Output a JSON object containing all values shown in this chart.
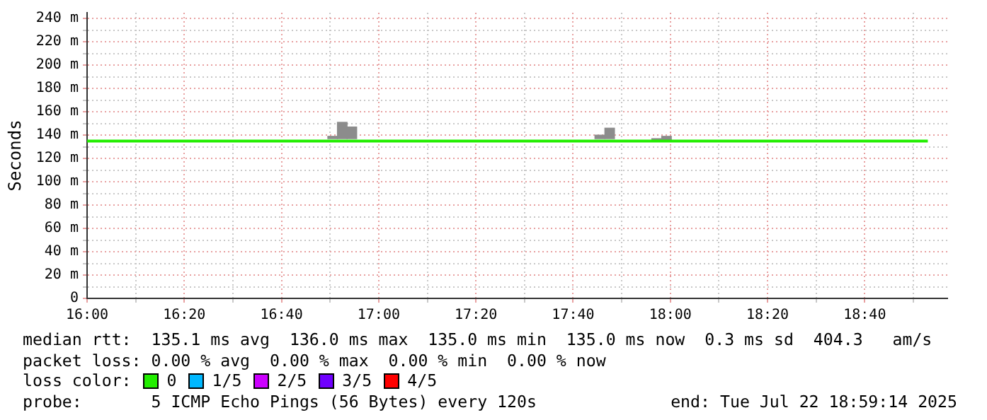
{
  "chart_data": {
    "type": "step",
    "ylabel": "Seconds",
    "legend_title": "loss color:",
    "legend": "bottom",
    "grid": true,
    "line_style": "solid",
    "marker": "none",
    "xlim": [
      16,
      18.95
    ],
    "xticks": [
      {
        "value": 16,
        "label": "16:00"
      },
      {
        "value": 16.1667,
        "label": null
      },
      {
        "value": 16.3333,
        "label": "16:20"
      },
      {
        "value": 16.5,
        "label": null
      },
      {
        "value": 16.6667,
        "label": "16:40"
      },
      {
        "value": 16.8333,
        "label": null
      },
      {
        "value": 17,
        "label": "17:00"
      },
      {
        "value": 17.1667,
        "label": null
      },
      {
        "value": 17.3333,
        "label": "17:20"
      },
      {
        "value": 17.5,
        "label": null
      },
      {
        "value": 17.6667,
        "label": "17:40"
      },
      {
        "value": 17.8333,
        "label": null
      },
      {
        "value": 18,
        "label": "18:00"
      },
      {
        "value": 18.1667,
        "label": null
      },
      {
        "value": 18.3333,
        "label": "18:20"
      },
      {
        "value": 18.5,
        "label": null
      },
      {
        "value": 18.6667,
        "label": "18:40"
      },
      {
        "value": 18.8333,
        "label": null
      }
    ],
    "ylim": [
      0,
      245
    ],
    "yticks": [
      0,
      {
        "value": 10,
        "label": null
      },
      {
        "value": 20,
        "label": "20 m"
      },
      {
        "value": 30,
        "label": null
      },
      {
        "value": 40,
        "label": "40 m"
      },
      {
        "value": 50,
        "label": null
      },
      {
        "value": 60,
        "label": "60 m"
      },
      {
        "value": 70,
        "label": null
      },
      {
        "value": 80,
        "label": "80 m"
      },
      {
        "value": 90,
        "label": null
      },
      {
        "value": 100,
        "label": "100 m"
      },
      {
        "value": 110,
        "label": null
      },
      {
        "value": 120,
        "label": "120 m"
      },
      {
        "value": 130,
        "label": null
      },
      {
        "value": 140,
        "label": "140 m"
      },
      {
        "value": 150,
        "label": null
      },
      {
        "value": 160,
        "label": "160 m"
      },
      {
        "value": 170,
        "label": null
      },
      {
        "value": 180,
        "label": "180 m"
      },
      {
        "value": 190,
        "label": null
      },
      {
        "value": 200,
        "label": "200 m"
      },
      {
        "value": 210,
        "label": null
      },
      {
        "value": 220,
        "label": "220 m"
      },
      {
        "value": 230,
        "label": null
      },
      {
        "value": 240,
        "label": "240 m"
      }
    ],
    "series": [
      {
        "type": "bar",
        "color": "#8c8c8c",
        "x": [
          16.842,
          16.875,
          16.908,
          17.758,
          17.792,
          17.953,
          17.987
        ],
        "base": [
          137,
          137,
          137,
          137,
          137,
          136,
          136
        ],
        "values": [
          2,
          14,
          10,
          3,
          9,
          1,
          3
        ]
      },
      {
        "name": "0",
        "color": "#22ee00",
        "x": [
          16,
          16.367,
          18.883
        ],
        "values": [
          136,
          135,
          135
        ]
      },
      {
        "name": "1/5",
        "color": "#00b8ff"
      },
      {
        "name": "2/5",
        "color": "#cc00ff"
      },
      {
        "name": "3/5",
        "color": "#7000ff"
      },
      {
        "name": "4/5",
        "color": "#ff0000"
      }
    ],
    "annotations": [
      "median rtt:  135.1 ms avg  136.0 ms max  135.0 ms min  135.0 ms now  0.3 ms sd  404.3   am/s",
      "packet loss: 0.00 % avg  0.00 % max  0.00 % min  0.00 % now",
      "probe:       5 ICMP Echo Pings (56 Bytes) every 120s",
      "end: Tue Jul 22 18:59:14 2025"
    ]
  }
}
